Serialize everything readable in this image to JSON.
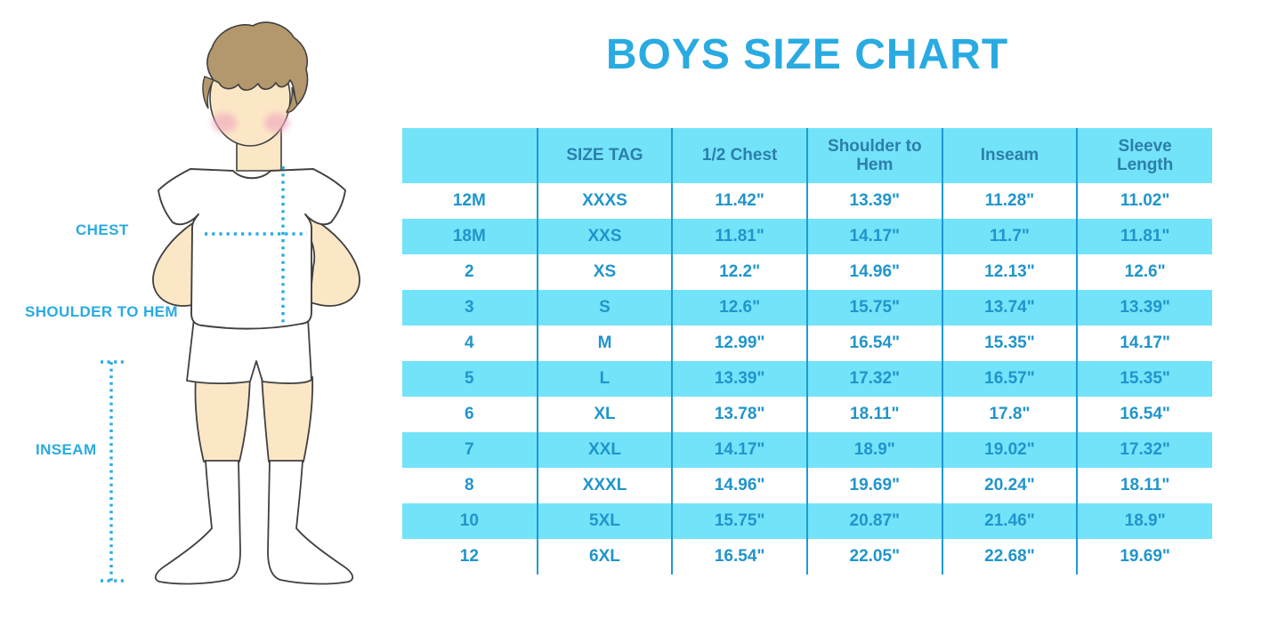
{
  "title": "BOYS SIZE CHART",
  "colors": {
    "accent": "#29abe2",
    "table_fill": "#73e3f9",
    "divider": "#1d9ad7",
    "header_text": "#2b7fab",
    "cell_text": "#2095cc",
    "skin": "#fbe7c6",
    "hair": "#b3986e",
    "cheek": "#f1a9bf",
    "outline": "#404040",
    "garment": "#ffffff"
  },
  "figure": {
    "labels": {
      "chest": "CHEST",
      "shoulder_to_hem": "SHOULDER TO HEM",
      "inseam": "INSEAM"
    }
  },
  "chart_data": {
    "type": "table",
    "title": "BOYS SIZE CHART",
    "columns": [
      "",
      "SIZE TAG",
      "1/2 Chest",
      "Shoulder to Hem",
      "Inseam",
      "Sleeve Length"
    ],
    "rows": [
      [
        "12M",
        "XXXS",
        "11.42\"",
        "13.39\"",
        "11.28\"",
        "11.02\""
      ],
      [
        "18M",
        "XXS",
        "11.81\"",
        "14.17\"",
        "11.7\"",
        "11.81\""
      ],
      [
        "2",
        "XS",
        "12.2\"",
        "14.96\"",
        "12.13\"",
        "12.6\""
      ],
      [
        "3",
        "S",
        "12.6\"",
        "15.75\"",
        "13.74\"",
        "13.39\""
      ],
      [
        "4",
        "M",
        "12.99\"",
        "16.54\"",
        "15.35\"",
        "14.17\""
      ],
      [
        "5",
        "L",
        "13.39\"",
        "17.32\"",
        "16.57\"",
        "15.35\""
      ],
      [
        "6",
        "XL",
        "13.78\"",
        "18.11\"",
        "17.8\"",
        "16.54\""
      ],
      [
        "7",
        "XXL",
        "14.17\"",
        "18.9\"",
        "19.02\"",
        "17.32\""
      ],
      [
        "8",
        "XXXL",
        "14.96\"",
        "19.69\"",
        "20.24\"",
        "18.11\""
      ],
      [
        "10",
        "5XL",
        "15.75\"",
        "20.87\"",
        "21.46\"",
        "18.9\""
      ],
      [
        "12",
        "6XL",
        "16.54\"",
        "22.05\"",
        "22.68\"",
        "19.69\""
      ]
    ],
    "row_striping": "white / light-cyan alternating, header light-cyan",
    "legend_position": "none",
    "grid": "vertical dividers only"
  }
}
